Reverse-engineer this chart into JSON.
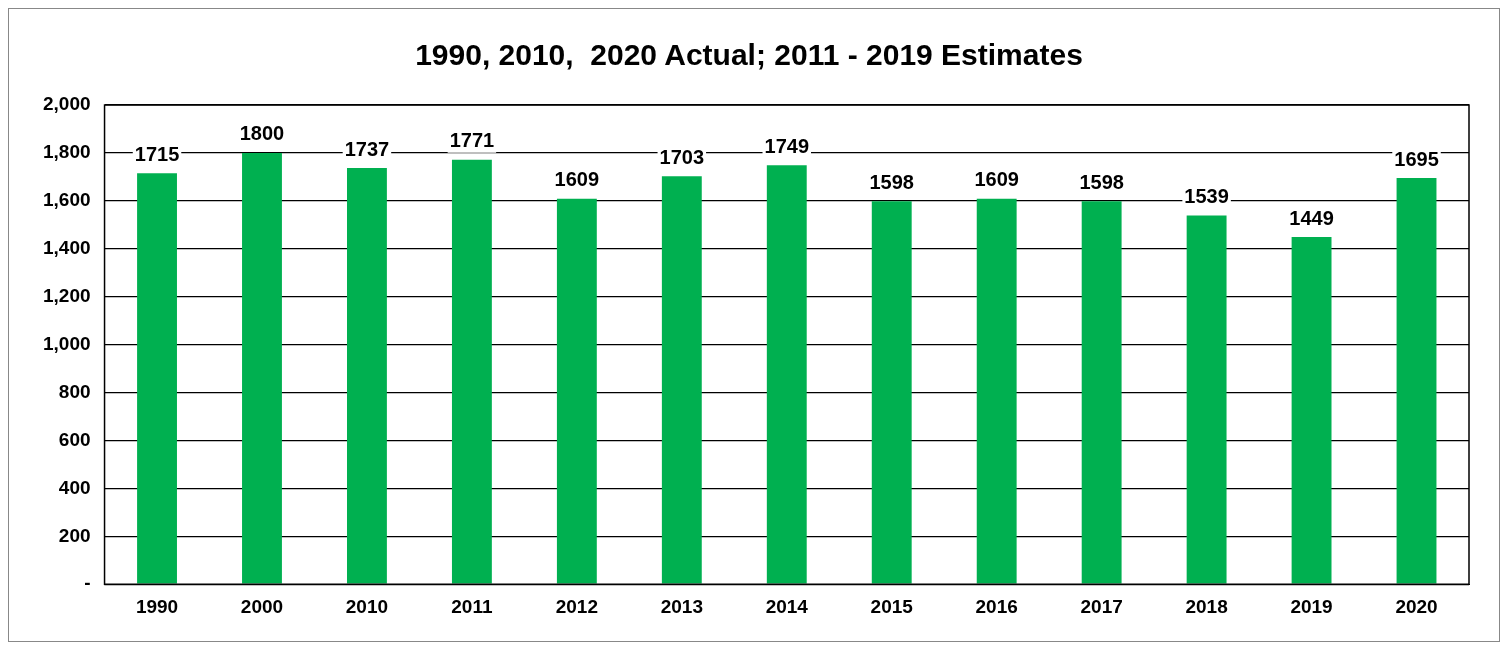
{
  "chart_data": {
    "type": "bar",
    "title": "1990, 2010,  2020 Actual; 2011 - 2019 Estimates",
    "categories": [
      "1990",
      "2000",
      "2010",
      "2011",
      "2012",
      "2013",
      "2014",
      "2015",
      "2016",
      "2017",
      "2018",
      "2019",
      "2020"
    ],
    "values": [
      1715,
      1800,
      1737,
      1771,
      1609,
      1703,
      1749,
      1598,
      1609,
      1598,
      1539,
      1449,
      1695
    ],
    "color": "#00b050",
    "ylim": [
      0,
      2000
    ],
    "yticks": [
      {
        "value": 0,
        "label": "-"
      },
      {
        "value": 200,
        "label": "200"
      },
      {
        "value": 400,
        "label": "400"
      },
      {
        "value": 600,
        "label": "600"
      },
      {
        "value": 800,
        "label": "800"
      },
      {
        "value": 1000,
        "label": "1,000"
      },
      {
        "value": 1200,
        "label": "1,200"
      },
      {
        "value": 1400,
        "label": "1,400"
      },
      {
        "value": 1600,
        "label": "1,600"
      },
      {
        "value": 1800,
        "label": "1,800"
      },
      {
        "value": 2000,
        "label": "2,000"
      }
    ],
    "grid": "y",
    "data_labels": true
  }
}
